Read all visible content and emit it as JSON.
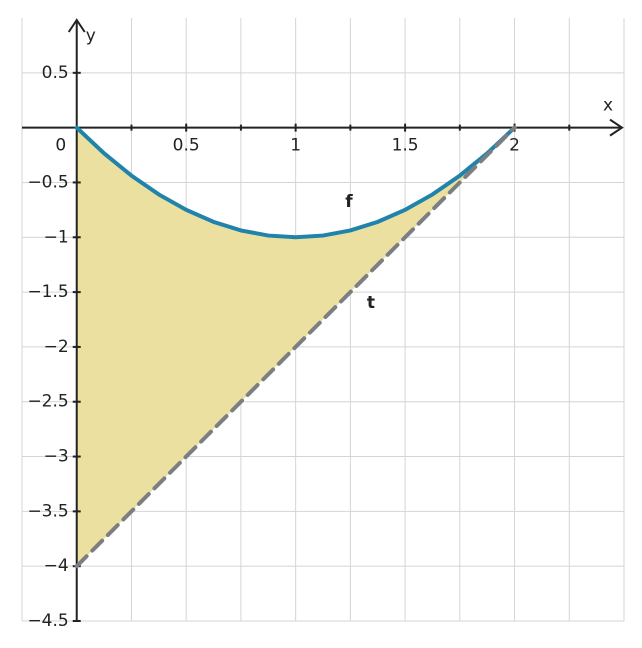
{
  "chart_data": {
    "type": "line",
    "x_label": "x",
    "y_label": "y",
    "xlim": [
      -0.25,
      2.5
    ],
    "ylim": [
      -4.5,
      1
    ],
    "xticks": [
      0,
      0.5,
      1,
      1.5,
      2
    ],
    "xgrid": [
      -0.25,
      0.25,
      0.75,
      1.25,
      1.75,
      2.25,
      2.5
    ],
    "yticks": [
      {
        "value": 0.5,
        "label": "0.5"
      },
      {
        "value": -0.5,
        "label": "−0.5"
      },
      {
        "value": -1,
        "label": "−1"
      },
      {
        "value": -1.5,
        "label": "−1.5"
      },
      {
        "value": -2,
        "label": "−2"
      },
      {
        "value": -2.5,
        "label": "−2.5"
      },
      {
        "value": -3,
        "label": "−3"
      },
      {
        "value": -3.5,
        "label": "−3.5"
      },
      {
        "value": -4,
        "label": "−4"
      },
      {
        "value": -4.5,
        "label": "−4.5"
      }
    ],
    "grid": true,
    "fill_color": "#ece0a0",
    "series": [
      {
        "name": "f",
        "color": "#1f83ab",
        "x": [
          0,
          0.125,
          0.25,
          0.375,
          0.5,
          0.625,
          0.75,
          0.875,
          1,
          1.125,
          1.25,
          1.375,
          1.5,
          1.625,
          1.75,
          1.875,
          2
        ],
        "values": [
          0,
          -0.234375,
          -0.4375,
          -0.609375,
          -0.75,
          -0.859375,
          -0.9375,
          -0.984375,
          -1,
          -0.984375,
          -0.9375,
          -0.859375,
          -0.75,
          -0.609375,
          -0.4375,
          -0.234375,
          0
        ]
      },
      {
        "name": "t",
        "color": "#7b7f83",
        "dashed": true,
        "x": [
          0,
          2
        ],
        "values": [
          -4,
          0
        ]
      }
    ]
  }
}
